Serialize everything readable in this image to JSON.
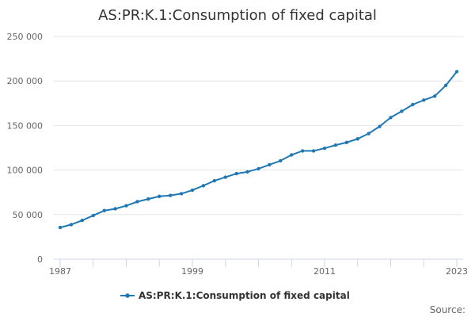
{
  "chart_data": {
    "type": "line",
    "title": "AS:PR:K.1:Consumption of fixed capital",
    "xlabel": "",
    "ylabel": "",
    "x": [
      1987,
      1988,
      1989,
      1990,
      1991,
      1992,
      1993,
      1994,
      1995,
      1996,
      1997,
      1998,
      1999,
      2000,
      2001,
      2002,
      2003,
      2004,
      2005,
      2006,
      2007,
      2008,
      2009,
      2010,
      2011,
      2012,
      2013,
      2014,
      2015,
      2016,
      2017,
      2018,
      2019,
      2020,
      2021,
      2022,
      2023
    ],
    "series": [
      {
        "name": "AS:PR:K.1:Consumption of fixed capital",
        "color": "#1f78b4",
        "values": [
          35500,
          38800,
          43500,
          49000,
          54500,
          56500,
          60000,
          64500,
          67500,
          70500,
          71500,
          73500,
          77500,
          82500,
          88000,
          92000,
          96000,
          98000,
          101500,
          106000,
          110500,
          117000,
          121500,
          121500,
          124500,
          128000,
          131000,
          135000,
          141000,
          149000,
          159000,
          166000,
          173500,
          178500,
          183000,
          195000,
          210500
        ]
      }
    ],
    "xticks": [
      1987,
      1999,
      2011,
      2023
    ],
    "minor_xticks": [
      1987,
      1990,
      1993,
      1996,
      1999,
      2002,
      2005,
      2008,
      2011,
      2014,
      2017,
      2020,
      2023
    ],
    "xlim": [
      1987,
      2023
    ],
    "yticks": [
      0,
      50000,
      100000,
      150000,
      200000,
      250000
    ],
    "ytick_labels": [
      "0",
      "50 000",
      "100 000",
      "150 000",
      "200 000",
      "250 000"
    ],
    "ylim": [
      0,
      250000
    ],
    "grid": true,
    "legend": {
      "position": "bottom-center",
      "label": "AS:PR:K.1:Consumption of fixed capital"
    },
    "source_label": "Source:"
  }
}
